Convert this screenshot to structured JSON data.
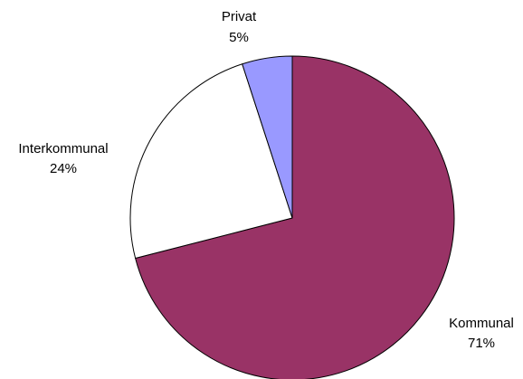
{
  "chart_data": {
    "type": "pie",
    "title": "",
    "categories": [
      "Kommunal",
      "Interkommunal",
      "Privat"
    ],
    "values": [
      71,
      24,
      5
    ],
    "percent_labels": [
      "71%",
      "24%",
      "5%"
    ],
    "colors": [
      "#993366",
      "#ffffff",
      "#9999ff"
    ],
    "start": "12 o'clock",
    "direction": "clockwise",
    "legend": "none",
    "data_labels": "outside"
  }
}
